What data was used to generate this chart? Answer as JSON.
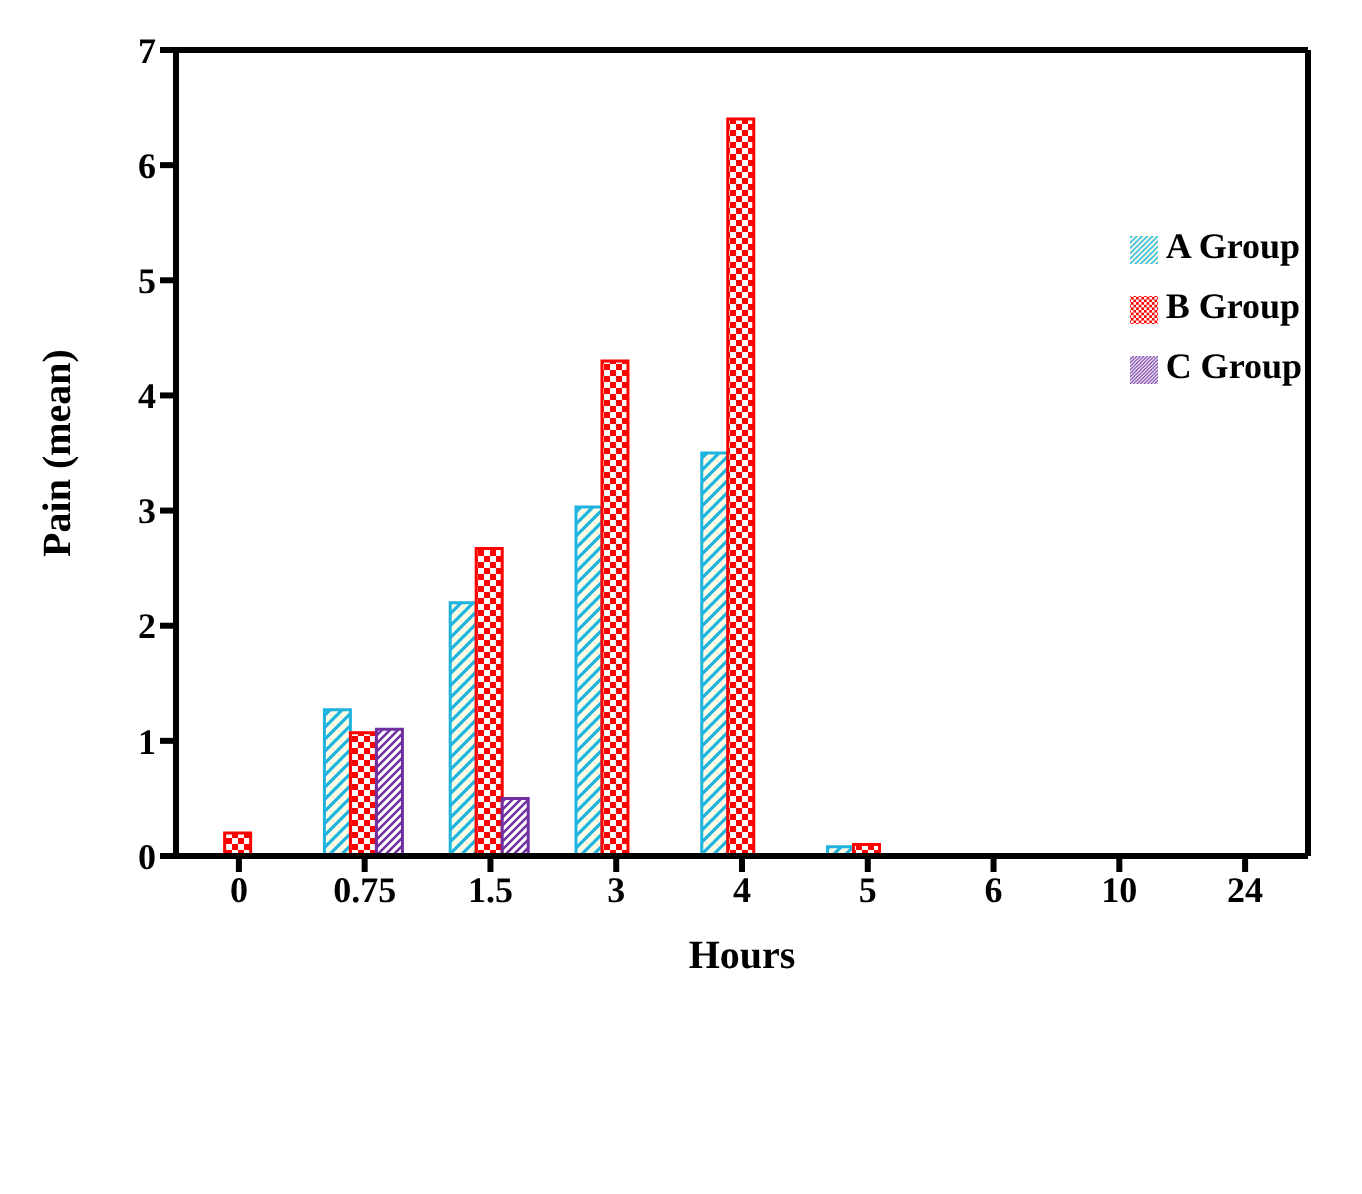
{
  "chart_data": {
    "type": "bar",
    "xlabel": "Hours",
    "ylabel": "Pain (mean)",
    "categories": [
      "0",
      "0.75",
      "1.5",
      "3",
      "4",
      "5",
      "6",
      "10",
      "24"
    ],
    "ylim": [
      0,
      7
    ],
    "yticks": [
      0,
      1,
      2,
      3,
      4,
      5,
      6,
      7
    ],
    "grid": false,
    "legend": "right",
    "series": [
      {
        "name": "A Group",
        "color": "#1fb4e0",
        "values": [
          0,
          1.27,
          2.2,
          3.03,
          3.5,
          0.08,
          0,
          0,
          0
        ]
      },
      {
        "name": "B Group",
        "color": "#ff0000",
        "values": [
          0.2,
          1.07,
          2.67,
          4.3,
          6.4,
          0.1,
          0,
          0,
          0
        ]
      },
      {
        "name": "C Group",
        "color": "#7030a0",
        "values": [
          0,
          1.1,
          0.5,
          0,
          0,
          0,
          0,
          0,
          0
        ]
      }
    ]
  }
}
